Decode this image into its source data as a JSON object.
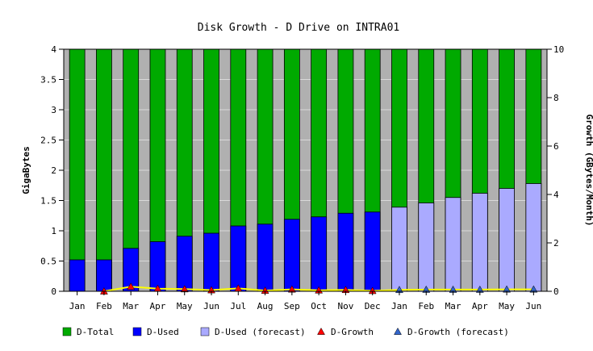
{
  "chart_data": {
    "type": "bar",
    "title": "Disk Growth - D Drive on INTRA01",
    "ylabel": "GigaBytes",
    "y2label": "Growth (GBytes/Month)",
    "ylim": [
      0,
      4
    ],
    "y2lim": [
      0,
      10
    ],
    "yticks": [
      "0",
      "0.5",
      "1",
      "1.5",
      "2",
      "2.5",
      "3",
      "3.5",
      "4"
    ],
    "y2ticks": [
      "0",
      "2",
      "4",
      "6",
      "8",
      "10"
    ],
    "categories": [
      "Jan",
      "Feb",
      "Mar",
      "Apr",
      "May",
      "Jun",
      "Jul",
      "Aug",
      "Sep",
      "Oct",
      "Nov",
      "Dec",
      "Jan",
      "Feb",
      "Mar",
      "Apr",
      "May",
      "Jun"
    ],
    "total": [
      4,
      4,
      4,
      4,
      4,
      4,
      4,
      4,
      4,
      4,
      4,
      4,
      4,
      4,
      4,
      4,
      4,
      4
    ],
    "used": [
      0.52,
      0.52,
      0.71,
      0.82,
      0.91,
      0.96,
      1.08,
      1.11,
      1.19,
      1.23,
      1.29,
      1.31,
      null,
      null,
      null,
      null,
      null,
      null
    ],
    "used_forecast": [
      null,
      null,
      null,
      null,
      null,
      null,
      null,
      null,
      null,
      null,
      null,
      null,
      1.39,
      1.46,
      1.55,
      1.62,
      1.7,
      1.78
    ],
    "growth": [
      null,
      0.0,
      0.19,
      0.11,
      0.09,
      0.05,
      0.12,
      0.03,
      0.08,
      0.04,
      0.06,
      0.02,
      null,
      null,
      null,
      null,
      null,
      null
    ],
    "growth_forecast": [
      null,
      null,
      null,
      null,
      null,
      null,
      null,
      null,
      null,
      null,
      null,
      null,
      0.06,
      0.07,
      0.07,
      0.07,
      0.08,
      0.08
    ],
    "legend": [
      "D-Total",
      "D-Used",
      "D-Used (forecast)",
      "D-Growth",
      "D-Growth (forecast)"
    ],
    "legend_position": "bottom",
    "grid": true,
    "colors": {
      "total": "#00aa00",
      "used": "#0000ff",
      "used_forecast": "#aaaaff",
      "growth": "#ff0000",
      "growth_forecast": "#3366cc",
      "growth_line": "#ffff00",
      "plot_bg": "#b0b0b0"
    }
  }
}
